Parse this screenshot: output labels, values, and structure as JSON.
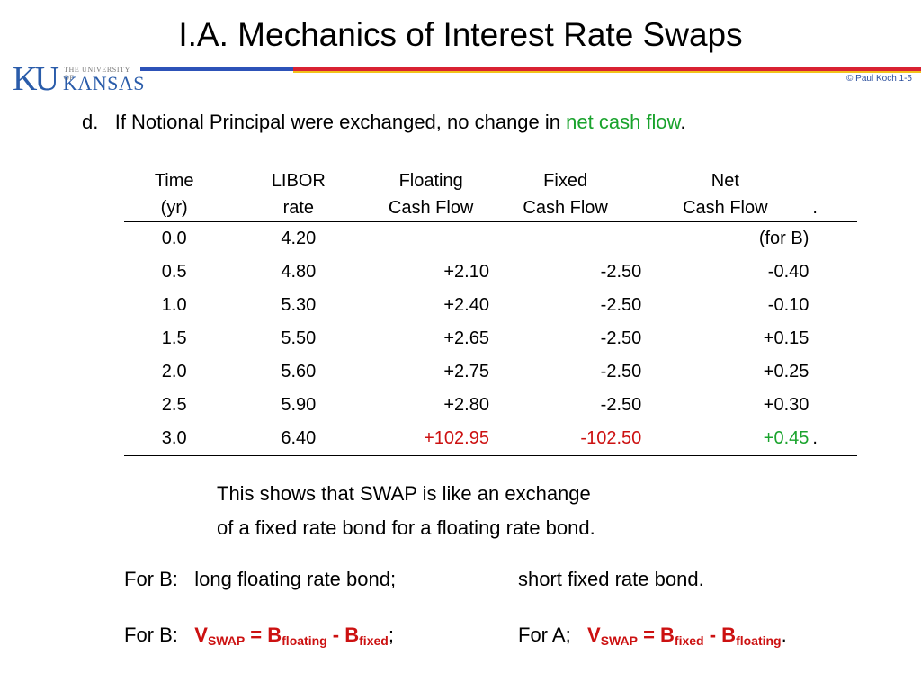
{
  "title": "I.A.  Mechanics of Interest Rate Swaps",
  "logo": {
    "ku": "KU",
    "top_line": "THE UNIVERSITY OF",
    "kansas": "KANSAS"
  },
  "copyright": "© Paul Koch 1-5",
  "bullet": {
    "marker": "d.",
    "text": "If  Notional Principal  were exchanged,  no change in ",
    "highlight": "net cash flow",
    "end": "."
  },
  "table": {
    "headers_line1": [
      "Time",
      "LIBOR",
      "Floating",
      "Fixed",
      "Net"
    ],
    "headers_line2": [
      "(yr)",
      "rate",
      "Cash Flow",
      "Cash Flow",
      "Cash Flow"
    ],
    "header_period": ".",
    "rows": [
      {
        "time": "0.0",
        "libor": "4.20",
        "floating": "",
        "fixed": "",
        "net": "(for B)"
      },
      {
        "time": "0.5",
        "libor": "4.80",
        "floating": "+2.10",
        "fixed": "-2.50",
        "net": "-0.40"
      },
      {
        "time": "1.0",
        "libor": "5.30",
        "floating": "+2.40",
        "fixed": "-2.50",
        "net": "-0.10"
      },
      {
        "time": "1.5",
        "libor": "5.50",
        "floating": "+2.65",
        "fixed": "-2.50",
        "net": "+0.15"
      },
      {
        "time": "2.0",
        "libor": "5.60",
        "floating": "+2.75",
        "fixed": "-2.50",
        "net": "+0.25"
      },
      {
        "time": "2.5",
        "libor": "5.90",
        "floating": "+2.80",
        "fixed": "-2.50",
        "net": "+0.30"
      },
      {
        "time": "3.0",
        "libor": "6.40",
        "floating": "+102.95",
        "fixed": "-102.50",
        "net": "+0.45",
        "end": "."
      }
    ]
  },
  "summary": {
    "line1": "This shows that  SWAP  is like an exchange",
    "line2": "of  a fixed rate bond  for  a floating rate bond."
  },
  "for_b_line": {
    "label": "For B:",
    "part1": "long floating rate bond;",
    "part2": "short fixed rate bond."
  },
  "formula_line": {
    "label_b": "For B:",
    "b_V": "V",
    "b_Vsub": "SWAP",
    "b_eq": " = B",
    "b_B1sub": "floating",
    "b_minus": " - B",
    "b_B2sub": "fixed",
    "b_end": ";",
    "label_a": "For A;",
    "a_V": "V",
    "a_Vsub": "SWAP",
    "a_eq": " = B",
    "a_B1sub": "fixed",
    "a_minus": " - B",
    "a_B2sub": "floating",
    "a_end": "."
  },
  "colors": {
    "highlight_green": "#1aa32d",
    "highlight_red": "#cc1111",
    "ku_blue": "#2a5caa"
  }
}
